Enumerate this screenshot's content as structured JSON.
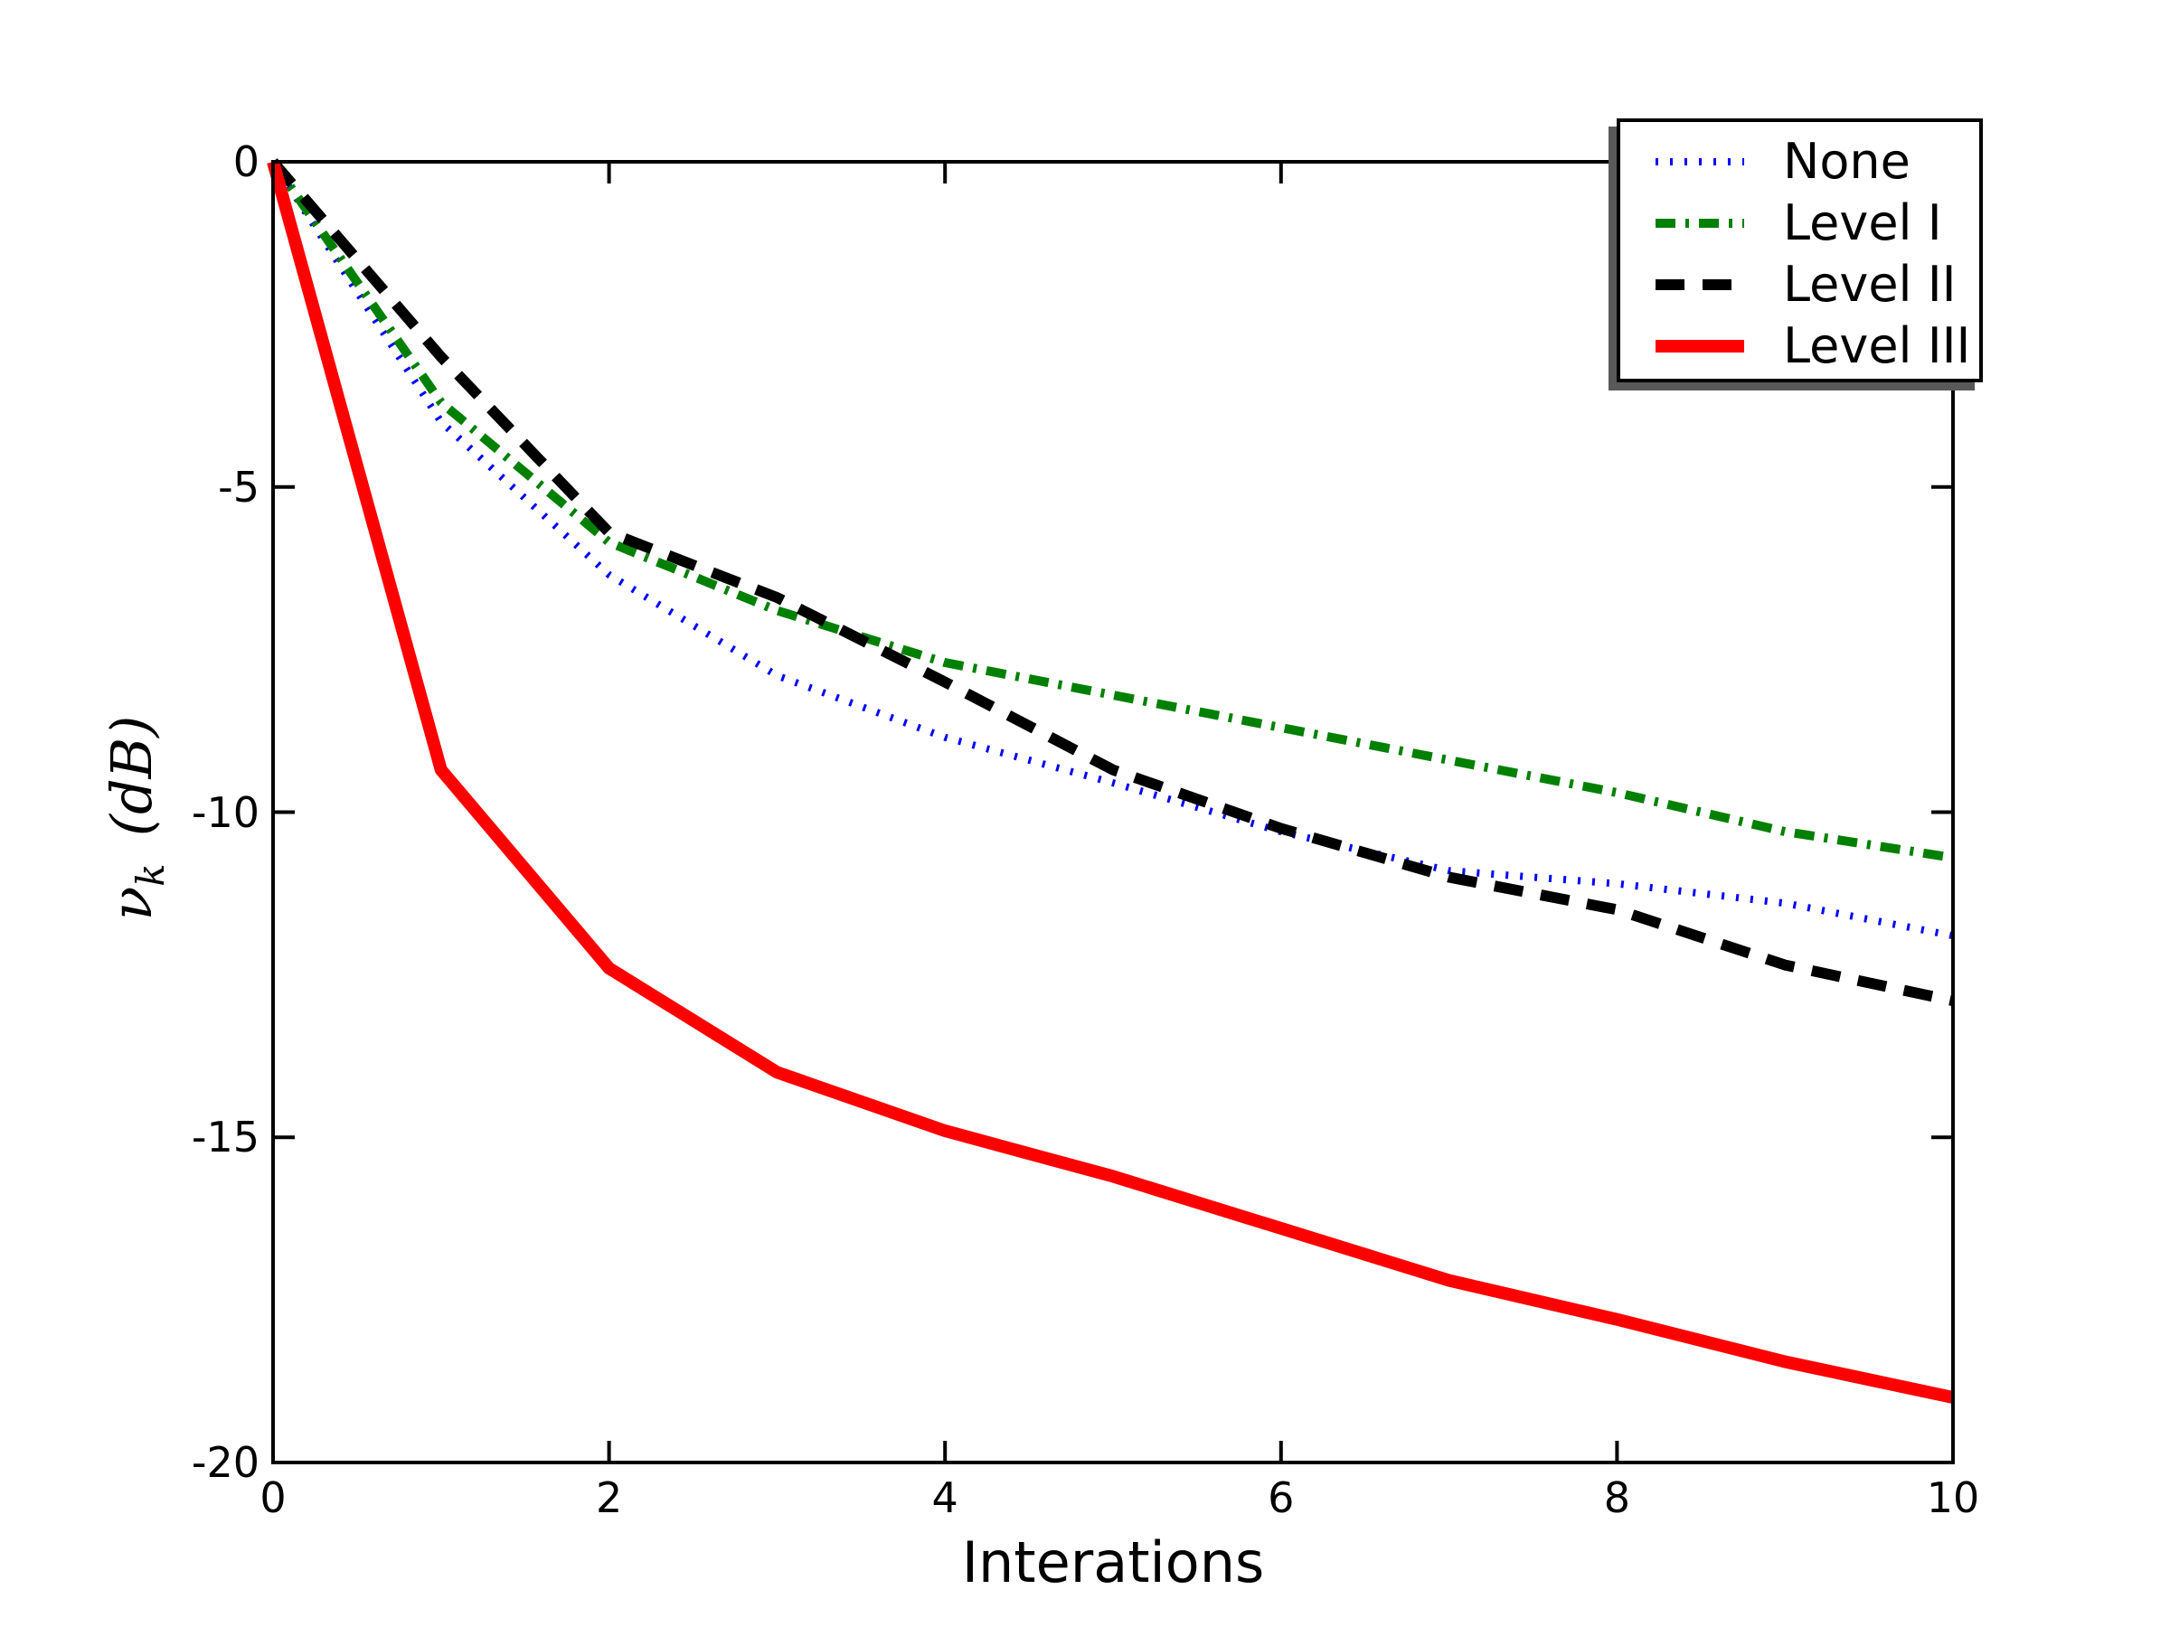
{
  "chart_data": {
    "type": "line",
    "title": "",
    "xlabel": "Interations",
    "ylabel_parts": {
      "nu": "ν",
      "sub": "k",
      "unit": "(dB)"
    },
    "xlim": [
      0,
      10
    ],
    "ylim": [
      -20,
      0
    ],
    "x_ticks": [
      0,
      2,
      4,
      6,
      8,
      10
    ],
    "y_ticks": [
      0,
      -5,
      -10,
      -15,
      -20
    ],
    "x_tick_labels": [
      "0",
      "2",
      "4",
      "6",
      "8",
      "10"
    ],
    "y_tick_labels": [
      "0",
      "-5",
      "-10",
      "-15",
      "-20"
    ],
    "grid": false,
    "legend_position": "upper right",
    "x": [
      0,
      1,
      2,
      3,
      4,
      5,
      6,
      7,
      8,
      9,
      10
    ],
    "series": [
      {
        "name": "None",
        "color": "#0000ff",
        "style": "dotted",
        "line_width": 8,
        "values": [
          0,
          -4.0,
          -6.35,
          -7.9,
          -8.85,
          -9.55,
          -10.3,
          -10.9,
          -11.1,
          -11.4,
          -11.9
        ]
      },
      {
        "name": "Level I",
        "color": "#008000",
        "style": "dashdot",
        "line_width": 10,
        "values": [
          0,
          -3.7,
          -5.85,
          -6.9,
          -7.7,
          -8.2,
          -8.7,
          -9.2,
          -9.7,
          -10.3,
          -10.7
        ]
      },
      {
        "name": "Level II",
        "color": "#000000",
        "style": "dashed",
        "line_width": 12,
        "values": [
          0,
          -3.0,
          -5.7,
          -6.7,
          -8.0,
          -9.35,
          -10.25,
          -11.0,
          -11.5,
          -12.35,
          -12.9
        ]
      },
      {
        "name": "Level III",
        "color": "#ff0000",
        "style": "solid",
        "line_width": 14,
        "values": [
          0,
          -9.35,
          -12.4,
          -14.0,
          -14.9,
          -15.6,
          -16.4,
          -17.2,
          -17.8,
          -18.45,
          -19.0
        ]
      }
    ]
  }
}
